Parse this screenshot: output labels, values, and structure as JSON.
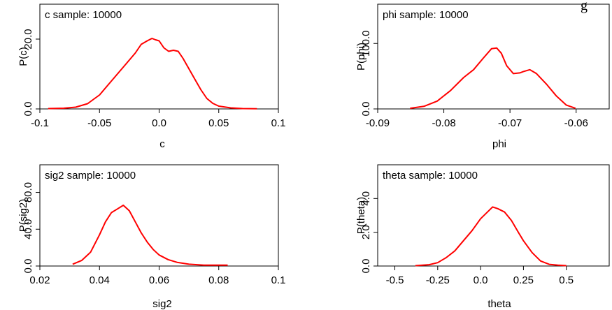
{
  "header_fragment": "g",
  "chart_data": [
    {
      "type": "line",
      "title": "c sample: 10000",
      "xlabel": "c",
      "ylabel": "P(c)",
      "xlim": [
        -0.1,
        0.1
      ],
      "ylim": [
        0,
        30
      ],
      "xticks": [
        -0.1,
        -0.05,
        0.0,
        0.05,
        0.1
      ],
      "xtick_labels": [
        "-0.1",
        "-0.05",
        "0.0",
        "0.05",
        "0.1"
      ],
      "yticks": [
        0,
        20
      ],
      "ytick_labels": [
        "0.0",
        "20.0"
      ],
      "color": "#ff0000",
      "series": [
        {
          "x": [
            -0.093,
            -0.08,
            -0.07,
            -0.06,
            -0.05,
            -0.04,
            -0.03,
            -0.02,
            -0.015,
            -0.01,
            -0.006,
            -0.003,
            0.0,
            0.004,
            0.008,
            0.012,
            0.016,
            0.02,
            0.025,
            0.03,
            0.035,
            0.04,
            0.045,
            0.05,
            0.06,
            0.07,
            0.082
          ],
          "y": [
            0.1,
            0.2,
            0.5,
            1.5,
            4,
            8,
            12,
            16,
            18.5,
            19.5,
            20.2,
            19.8,
            19.5,
            17.5,
            16.5,
            16.8,
            16.5,
            14.5,
            11.5,
            8.5,
            5.5,
            3,
            1.6,
            0.8,
            0.3,
            0.1,
            0.05
          ]
        }
      ]
    },
    {
      "type": "line",
      "title": "phi sample: 10000",
      "xlabel": "phi",
      "ylabel": "P(phi)",
      "xlim": [
        -0.09,
        -0.055
      ],
      "ylim": [
        0,
        160
      ],
      "xticks": [
        -0.09,
        -0.08,
        -0.07,
        -0.06
      ],
      "xtick_labels": [
        "-0.09",
        "-0.08",
        "-0.07",
        "-0.06"
      ],
      "yticks": [
        0,
        100
      ],
      "ytick_labels": [
        "0.0",
        "100.0"
      ],
      "color": "#ff0000",
      "series": [
        {
          "x": [
            -0.0851,
            -0.083,
            -0.081,
            -0.079,
            -0.077,
            -0.0755,
            -0.074,
            -0.0728,
            -0.072,
            -0.0713,
            -0.0705,
            -0.0695,
            -0.0685,
            -0.068,
            -0.067,
            -0.066,
            -0.0645,
            -0.063,
            -0.0615,
            -0.0601
          ],
          "y": [
            1,
            4,
            12,
            28,
            48,
            60,
            78,
            92,
            93,
            85,
            66,
            54,
            55,
            57,
            60,
            54,
            38,
            20,
            6,
            1
          ]
        }
      ]
    },
    {
      "type": "line",
      "title": "sig2 sample: 10000",
      "xlabel": "sig2",
      "ylabel": "P(sig2)",
      "xlim": [
        0.02,
        0.1
      ],
      "ylim": [
        0,
        110
      ],
      "xticks": [
        0.02,
        0.04,
        0.06,
        0.08,
        0.1
      ],
      "xtick_labels": [
        "0.02",
        "0.04",
        "0.06",
        "0.08",
        "0.1"
      ],
      "yticks": [
        0,
        40,
        80
      ],
      "ytick_labels": [
        "0.0",
        "40.0",
        "80.0"
      ],
      "color": "#ff0000",
      "series": [
        {
          "x": [
            0.031,
            0.034,
            0.037,
            0.04,
            0.042,
            0.044,
            0.046,
            0.048,
            0.05,
            0.052,
            0.054,
            0.056,
            0.058,
            0.06,
            0.063,
            0.066,
            0.07,
            0.075,
            0.083
          ],
          "y": [
            2,
            6,
            15,
            34,
            48,
            58,
            62,
            66,
            60,
            48,
            36,
            26,
            18,
            12,
            7,
            4,
            2,
            1,
            1
          ]
        }
      ]
    },
    {
      "type": "line",
      "title": "theta sample: 10000",
      "xlabel": "theta",
      "ylabel": "P(theta)",
      "xlim": [
        -0.6,
        0.75
      ],
      "ylim": [
        0,
        6
      ],
      "xticks": [
        -0.5,
        -0.25,
        0.0,
        0.25,
        0.5
      ],
      "xtick_labels": [
        "-0.5",
        "-0.25",
        "0.0",
        "0.25",
        "0.5"
      ],
      "yticks": [
        0,
        2,
        4
      ],
      "ytick_labels": [
        "0.0",
        "2.0",
        "4.0"
      ],
      "color": "#ff0000",
      "series": [
        {
          "x": [
            -0.38,
            -0.3,
            -0.25,
            -0.2,
            -0.15,
            -0.1,
            -0.05,
            0.0,
            0.04,
            0.07,
            0.1,
            0.14,
            0.18,
            0.22,
            0.25,
            0.3,
            0.35,
            0.4,
            0.45,
            0.5
          ],
          "y": [
            0.02,
            0.08,
            0.2,
            0.5,
            0.9,
            1.5,
            2.1,
            2.8,
            3.2,
            3.5,
            3.4,
            3.2,
            2.7,
            2.0,
            1.5,
            0.8,
            0.3,
            0.1,
            0.05,
            0.02
          ]
        }
      ]
    }
  ]
}
